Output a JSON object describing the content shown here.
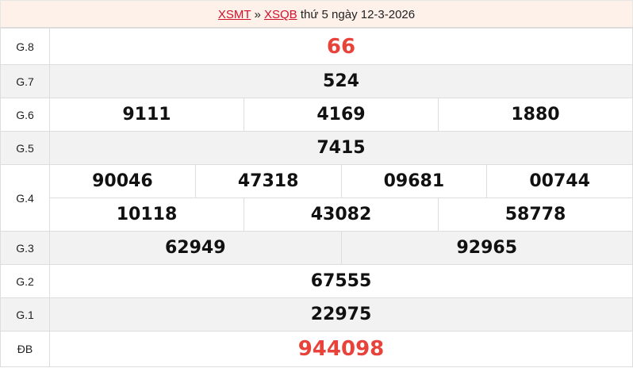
{
  "header": {
    "region_link": "XSMT",
    "separator": "»",
    "province_link": "XSQB",
    "date_text": "thứ 5 ngày 12-3-2026"
  },
  "colors": {
    "link": "#d0112b",
    "highlight": "#e8433b"
  },
  "prizes": [
    {
      "label": "G.8",
      "rows": [
        [
          "66"
        ]
      ],
      "highlight": true
    },
    {
      "label": "G.7",
      "rows": [
        [
          "524"
        ]
      ]
    },
    {
      "label": "G.6",
      "rows": [
        [
          "9111",
          "4169",
          "1880"
        ]
      ]
    },
    {
      "label": "G.5",
      "rows": [
        [
          "7415"
        ]
      ]
    },
    {
      "label": "G.4",
      "rows": [
        [
          "90046",
          "47318",
          "09681",
          "00744"
        ],
        [
          "10118",
          "43082",
          "58778"
        ]
      ]
    },
    {
      "label": "G.3",
      "rows": [
        [
          "62949",
          "92965"
        ]
      ]
    },
    {
      "label": "G.2",
      "rows": [
        [
          "67555"
        ]
      ]
    },
    {
      "label": "G.1",
      "rows": [
        [
          "22975"
        ]
      ]
    },
    {
      "label": "ĐB",
      "rows": [
        [
          "944098"
        ]
      ],
      "highlight": true
    }
  ]
}
